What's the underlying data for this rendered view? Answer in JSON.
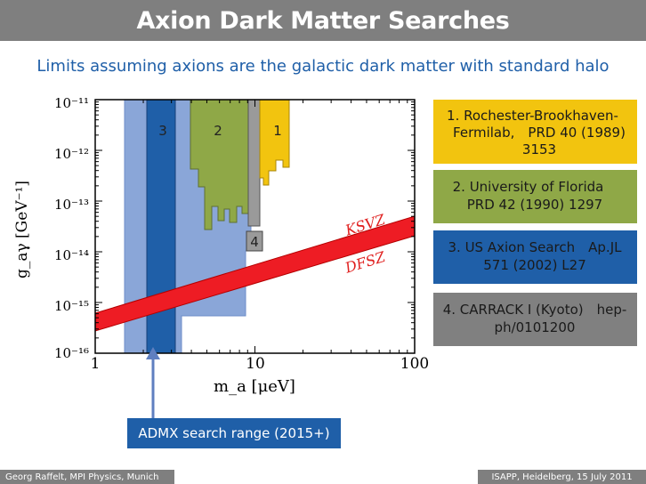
{
  "header": {
    "title": "Axion Dark Matter Searches"
  },
  "subtitle": "Limits assuming axions are the galactic dark matter with standard halo",
  "chart_data": {
    "type": "area",
    "xlabel": "m_a [μeV]",
    "ylabel": "g_aγ [GeV⁻¹]",
    "xscale": "log",
    "yscale": "log",
    "xlim": [
      1,
      100
    ],
    "ylim": [
      1e-16,
      1e-11
    ],
    "x_ticks": [
      "1",
      "10",
      "100"
    ],
    "y_ticks": [
      "10⁻¹⁶",
      "10⁻¹⁵",
      "10⁻¹⁴",
      "10⁻¹³",
      "10⁻¹²",
      "10⁻¹¹"
    ],
    "regions": [
      {
        "label": "1",
        "color": "#f2c40f"
      },
      {
        "label": "2",
        "color": "#8fa847"
      },
      {
        "label": "3",
        "color": "#1f5fa8"
      },
      {
        "label": "4",
        "color": "#9a9a9a"
      },
      {
        "label": "",
        "color": "#8aa6d8"
      }
    ],
    "band_labels": [
      "KSVZ",
      "DFSZ"
    ],
    "band_color": "#ee1c24"
  },
  "references": [
    {
      "text": "1. Rochester-Brookhaven- Fermilab, PRD 40 (1989) 3153",
      "color": "#f2c40f"
    },
    {
      "text": "2. University of Florida PRD 42 (1990) 1297",
      "color": "#8fa847"
    },
    {
      "text": "3. US Axion Search Ap.JL 571 (2002) L27",
      "color": "#1f5fa8"
    },
    {
      "text": "4. CARRACK I (Kyoto) hep-ph/0101200",
      "color": "#808080"
    }
  ],
  "admx_label": "ADMX search range (2015+)",
  "footer": {
    "left": "Georg Raffelt, MPI Physics, Munich",
    "right": "ISAPP, Heidelberg, 15 July 2011"
  },
  "colors": {
    "title_bar": "#7f7f7f",
    "accent": "#1f5fa8"
  }
}
